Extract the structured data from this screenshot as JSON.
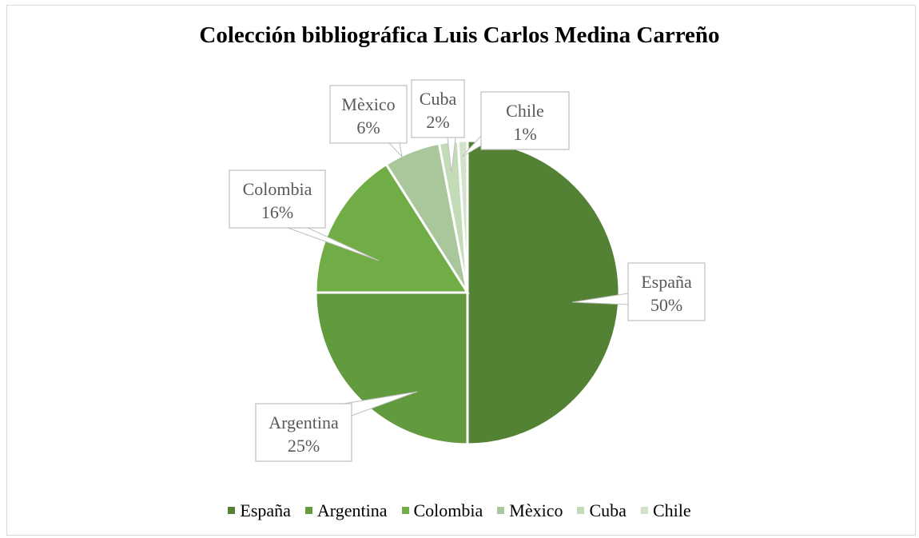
{
  "chart_data": {
    "type": "pie",
    "title": "Colección bibliográfica Luis Carlos Medina Carreño",
    "slices": [
      {
        "label": "España",
        "value": 50,
        "value_label": "50%",
        "color": "#548235"
      },
      {
        "label": "Argentina",
        "value": 25,
        "value_label": "25%",
        "color": "#629a3e"
      },
      {
        "label": "Colombia",
        "value": 16,
        "value_label": "16%",
        "color": "#70ad47"
      },
      {
        "label": "Mèxico",
        "value": 6,
        "value_label": "6%",
        "color": "#a9c79a"
      },
      {
        "label": "Cuba",
        "value": 2,
        "value_label": "2%",
        "color": "#c4dbb8"
      },
      {
        "label": "Chile",
        "value": 1,
        "value_label": "1%",
        "color": "#d2e3c9"
      }
    ],
    "legend_position": "bottom",
    "data_labels": "callouts with category name and percentage"
  }
}
